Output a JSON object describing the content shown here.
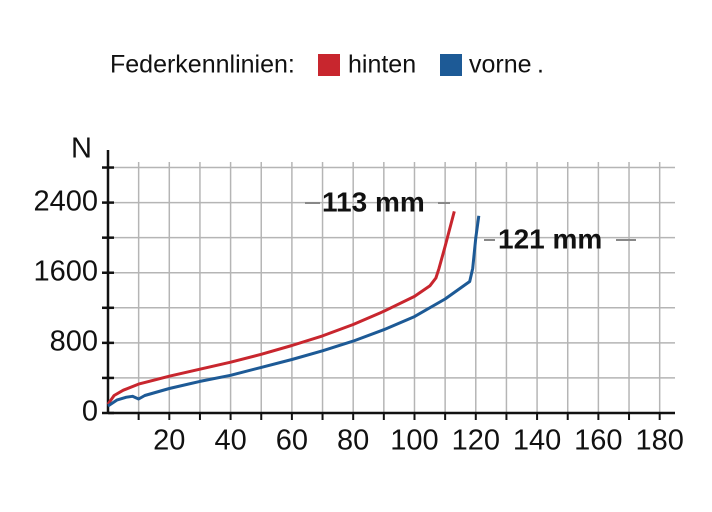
{
  "chart_data": {
    "type": "line",
    "title": "Federkennlinien:",
    "legend_suffix": ".",
    "y_label": "N",
    "xlim": [
      0,
      185
    ],
    "ylim": [
      0,
      3000
    ],
    "xticks": [
      20,
      40,
      60,
      80,
      100,
      120,
      140,
      160,
      180
    ],
    "xminorticks": [
      10,
      30,
      50,
      70,
      90,
      110,
      130,
      150,
      170
    ],
    "yticks": [
      0,
      800,
      1600,
      2400
    ],
    "yminorticks": [
      400,
      1200,
      2000,
      2800
    ],
    "grid": true,
    "series": [
      {
        "name": "hinten",
        "color": "#c8262e",
        "x": [
          0,
          2,
          5,
          10,
          20,
          30,
          40,
          50,
          60,
          70,
          80,
          90,
          100,
          105,
          107,
          108,
          110,
          113
        ],
        "values": [
          100,
          200,
          260,
          330,
          420,
          500,
          580,
          670,
          770,
          880,
          1010,
          1160,
          1330,
          1450,
          1540,
          1650,
          1900,
          2300
        ]
      },
      {
        "name": "vorne",
        "color": "#1d5a96",
        "x": [
          0,
          3,
          6,
          8,
          10,
          12,
          20,
          30,
          40,
          50,
          60,
          70,
          80,
          90,
          100,
          110,
          118,
          119,
          120,
          121
        ],
        "values": [
          80,
          150,
          180,
          190,
          160,
          200,
          280,
          360,
          430,
          520,
          610,
          710,
          820,
          950,
          1100,
          1300,
          1500,
          1650,
          2000,
          2250
        ]
      }
    ],
    "annotations": [
      {
        "text": "113 mm"
      },
      {
        "text": "121 mm"
      }
    ]
  }
}
